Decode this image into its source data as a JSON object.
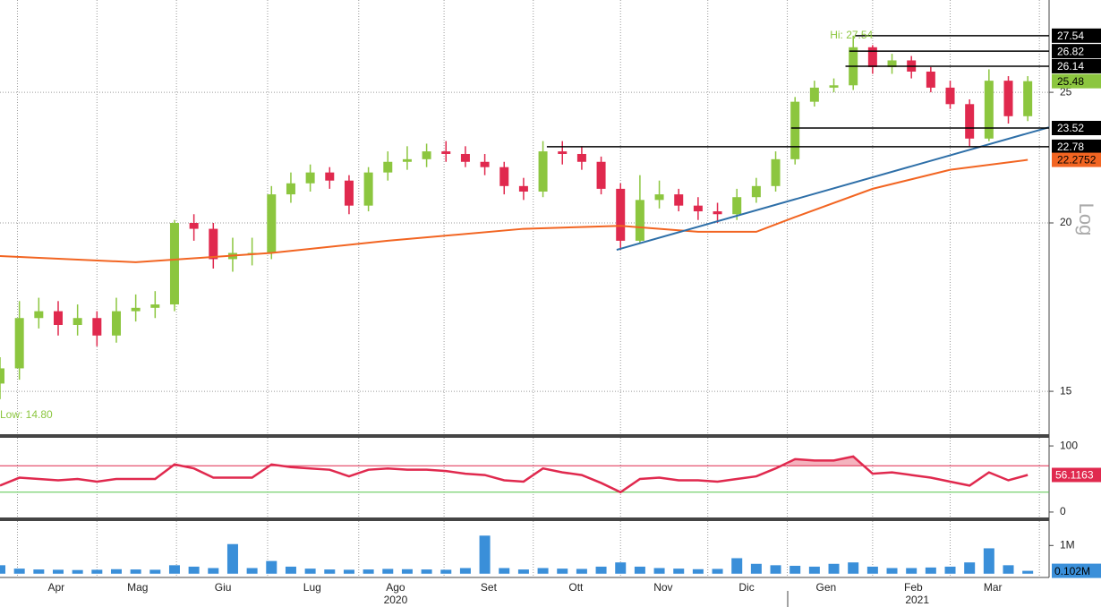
{
  "chart_data": [
    {
      "type": "candlestick",
      "log_scale": true,
      "ylim": [
        13.94,
        29.27
      ],
      "yticks": [
        15,
        20,
        25
      ],
      "xlim": [
        0,
        54.1
      ],
      "axis_label": "Log",
      "xgrid": [
        0.9,
        5.0,
        9.1,
        13.8,
        18.5,
        22.9,
        27.5,
        32.0,
        36.5,
        40.6,
        45.0,
        49.0,
        53.6
      ],
      "up_color": "#8cc63f",
      "down_color": "#e0294e",
      "x": [
        0,
        1,
        2,
        3,
        4,
        5,
        6,
        7,
        8,
        9,
        10,
        11,
        12,
        13,
        14,
        15,
        16,
        17,
        18,
        19,
        20,
        21,
        22,
        23,
        24,
        25,
        26,
        27,
        28,
        29,
        30,
        31,
        32,
        33,
        34,
        35,
        36,
        37,
        38,
        39,
        40,
        41,
        42,
        43,
        44,
        45,
        46,
        47,
        48,
        49,
        50,
        51,
        52,
        53
      ],
      "open": [
        15.2,
        15.6,
        17.0,
        17.2,
        16.8,
        17.0,
        16.5,
        17.2,
        17.3,
        17.4,
        20.0,
        19.8,
        18.8,
        19.0,
        19.0,
        21.0,
        21.4,
        21.8,
        21.5,
        20.6,
        21.8,
        22.2,
        22.3,
        22.6,
        22.5,
        22.2,
        22.0,
        21.3,
        21.1,
        22.6,
        22.5,
        22.2,
        21.2,
        19.4,
        20.8,
        21.0,
        20.6,
        20.4,
        20.3,
        20.9,
        21.3,
        22.3,
        24.6,
        25.2,
        25.3,
        27.0,
        26.1,
        26.4,
        25.9,
        25.2,
        24.5,
        23.1,
        25.5,
        24.0
      ],
      "high": [
        15.9,
        17.5,
        17.6,
        17.5,
        17.4,
        17.2,
        17.6,
        17.7,
        17.8,
        20.1,
        20.3,
        20.0,
        19.5,
        19.5,
        21.3,
        21.8,
        22.1,
        22.0,
        21.7,
        22.0,
        22.6,
        22.8,
        22.9,
        23.0,
        22.8,
        22.5,
        22.2,
        21.6,
        23.0,
        23.0,
        22.8,
        22.4,
        21.4,
        21.7,
        21.5,
        21.2,
        20.9,
        20.7,
        21.2,
        21.6,
        22.6,
        24.8,
        25.5,
        25.6,
        27.54,
        27.1,
        26.7,
        26.6,
        26.1,
        25.5,
        24.7,
        26.0,
        25.7,
        25.7
      ],
      "low": [
        14.8,
        15.3,
        16.7,
        16.5,
        16.5,
        16.2,
        16.3,
        16.9,
        17.0,
        17.2,
        19.4,
        18.5,
        18.4,
        18.6,
        18.8,
        20.7,
        21.1,
        21.2,
        20.3,
        20.4,
        21.5,
        21.9,
        22.0,
        22.2,
        22.0,
        21.7,
        21.0,
        20.8,
        20.9,
        22.1,
        21.9,
        21.0,
        19.1,
        19.3,
        20.5,
        20.4,
        20.1,
        20.0,
        20.1,
        20.7,
        21.1,
        22.1,
        24.4,
        25.0,
        25.1,
        25.8,
        25.8,
        25.6,
        25.0,
        24.3,
        22.8,
        23.0,
        23.7,
        23.8
      ],
      "close": [
        15.6,
        17.0,
        17.2,
        16.8,
        17.0,
        16.5,
        17.2,
        17.3,
        17.4,
        20.0,
        19.8,
        18.8,
        19.0,
        19.0,
        21.0,
        21.4,
        21.8,
        21.5,
        20.6,
        21.8,
        22.2,
        22.3,
        22.6,
        22.5,
        22.2,
        22.0,
        21.3,
        21.1,
        22.6,
        22.5,
        22.2,
        21.2,
        19.4,
        20.8,
        21.0,
        20.6,
        20.4,
        20.3,
        20.9,
        21.3,
        22.3,
        24.6,
        25.2,
        25.3,
        27.0,
        26.1,
        26.4,
        25.9,
        25.2,
        24.5,
        23.1,
        25.5,
        24.0,
        25.48
      ],
      "last_color": "#8cc63f",
      "moving_average": {
        "color": "#f26522",
        "x": [
          0,
          7,
          14,
          20,
          27,
          32,
          36,
          39,
          41,
          45,
          49,
          53
        ],
        "values": [
          18.9,
          18.7,
          19.0,
          19.4,
          19.8,
          19.9,
          19.7,
          19.7,
          20.2,
          21.2,
          21.9,
          22.2752
        ]
      },
      "trend_line": {
        "color": "#2e6fa8",
        "x": [
          31.8,
          54.1
        ],
        "values": [
          19.1,
          23.55
        ]
      },
      "levels": [
        {
          "value": 27.54,
          "from": 44.1
        },
        {
          "value": 26.82,
          "from": 43.8
        },
        {
          "value": 26.14,
          "from": 43.6
        },
        {
          "value": 23.52,
          "from": 40.8
        },
        {
          "value": 22.78,
          "from": 28.2
        }
      ],
      "annotations": [
        {
          "text": "Hi: 27.54",
          "x": 42.8,
          "y": 27.54
        },
        {
          "text": "Low: 14.80",
          "x": 0,
          "y": 14.4
        }
      ]
    },
    {
      "type": "line",
      "color": "#e0294e",
      "ylim": [
        -8.2,
        112.3
      ],
      "yticks": [
        0,
        100
      ],
      "levels": [
        {
          "value": 70,
          "color": "#e0294e"
        },
        {
          "value": 30,
          "color": "#55c64a"
        }
      ],
      "fill_color": "#f4b3be",
      "values": [
        40,
        52,
        50,
        48,
        50,
        46,
        50,
        50,
        50,
        72,
        66,
        52,
        52,
        52,
        72,
        68,
        66,
        64,
        54,
        64,
        66,
        64,
        64,
        62,
        58,
        56,
        48,
        46,
        66,
        60,
        56,
        44,
        30,
        50,
        52,
        48,
        48,
        46,
        50,
        54,
        66,
        80,
        78,
        78,
        84,
        58,
        60,
        56,
        52,
        46,
        40,
        60,
        48,
        56.1163
      ]
    },
    {
      "type": "bar",
      "color": "#3a8fd9",
      "ylim": [
        -133333,
        1866667
      ],
      "yticks": [
        {
          "value": 1000000,
          "label": "1M"
        }
      ],
      "values": [
        300000,
        180000,
        150000,
        140000,
        130000,
        140000,
        160000,
        150000,
        140000,
        300000,
        250000,
        200000,
        1050000,
        200000,
        450000,
        250000,
        180000,
        150000,
        140000,
        150000,
        170000,
        160000,
        150000,
        140000,
        200000,
        1350000,
        200000,
        150000,
        200000,
        180000,
        170000,
        250000,
        400000,
        250000,
        200000,
        180000,
        160000,
        170000,
        550000,
        350000,
        300000,
        280000,
        250000,
        350000,
        400000,
        250000,
        200000,
        200000,
        220000,
        250000,
        400000,
        900000,
        300000,
        102000
      ],
      "value_labels": [
        null,
        null,
        null,
        null,
        null,
        null,
        null,
        null,
        null,
        null,
        null,
        null,
        null,
        null,
        null,
        null,
        null,
        null,
        null,
        null,
        null,
        null,
        null,
        null,
        null,
        null,
        null,
        null,
        null,
        null,
        null,
        null,
        null,
        null,
        null,
        null,
        null,
        null,
        null,
        null,
        null,
        null,
        null,
        null,
        null,
        null,
        null,
        null,
        null,
        null,
        null,
        null,
        null,
        "0.102M"
      ],
      "xticks": [
        {
          "value": 2.9,
          "label": "Apr"
        },
        {
          "value": 7.1,
          "label": "Mag"
        },
        {
          "value": 11.5,
          "label": "Giu"
        },
        {
          "value": 16.1,
          "label": "Lug"
        },
        {
          "value": 20.4,
          "label": "Ago"
        },
        {
          "value": 25.2,
          "label": "Set"
        },
        {
          "value": 29.7,
          "label": "Ott"
        },
        {
          "value": 34.2,
          "label": "Nov"
        },
        {
          "value": 38.5,
          "label": "Dic"
        },
        {
          "value": 42.6,
          "label": "Gen"
        },
        {
          "value": 47.1,
          "label": "Feb"
        },
        {
          "value": 51.2,
          "label": "Mar"
        }
      ],
      "year_ticks": [
        {
          "value": 20.4,
          "label": "2020"
        },
        {
          "value": 47.3,
          "label": "2021"
        }
      ]
    }
  ]
}
